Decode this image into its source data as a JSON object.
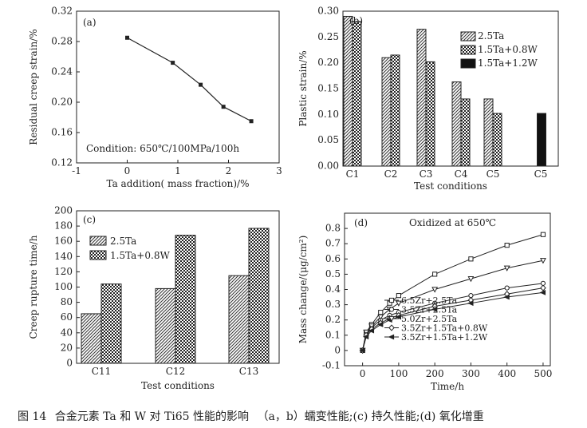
{
  "caption": {
    "figure_no": "图 14",
    "title": "合金元素 Ta 和 W 对 Ti65 性能的影响",
    "subtitle": "（a，b）蠕变性能;(c) 持久性能;(d) 氧化增重"
  },
  "chart_data": [
    {
      "id": "a",
      "type": "line",
      "panel_label": "(a)",
      "xlabel": "Ta addition( mass fraction)/%",
      "ylabel": "Residual creep strain/%",
      "xlim": [
        -1,
        3
      ],
      "ylim": [
        0.12,
        0.32
      ],
      "xticks": [
        -1,
        0,
        1,
        2,
        3
      ],
      "yticks": [
        "0.12",
        "0.16",
        "0.20",
        "0.24",
        "0.28",
        "0.32"
      ],
      "annotation": "Condition: 650℃/100MPa/100h",
      "x": [
        0,
        0.9,
        1.45,
        1.9,
        2.45
      ],
      "y": [
        0.285,
        0.252,
        0.223,
        0.194,
        0.175
      ]
    },
    {
      "id": "b",
      "type": "bar",
      "panel_label": "(b)",
      "xlabel": "Test conditions",
      "ylabel": "Plastic strain/%",
      "ylim": [
        0,
        0.3
      ],
      "yticks": [
        "0.00",
        "0.05",
        "0.10",
        "0.15",
        "0.20",
        "0.25",
        "0.30"
      ],
      "categories": [
        "C1",
        "C2",
        "C3",
        "C4",
        "C5",
        "C5"
      ],
      "series": [
        {
          "name": "2.5Ta",
          "values": [
            0.29,
            0.21,
            0.265,
            0.163,
            0.13,
            null
          ]
        },
        {
          "name": "1.5Ta+0.8W",
          "values": [
            0.28,
            0.215,
            0.202,
            0.13,
            0.102,
            null
          ]
        },
        {
          "name": "1.5Ta+1.2W",
          "values": [
            null,
            null,
            null,
            null,
            null,
            0.102
          ]
        }
      ]
    },
    {
      "id": "c",
      "type": "bar",
      "panel_label": "(c)",
      "xlabel": "Test conditions",
      "ylabel": "Creep rupture time/h",
      "ylim": [
        0,
        200
      ],
      "yticks": [
        "0",
        "20",
        "40",
        "60",
        "80",
        "100",
        "120",
        "140",
        "160",
        "180",
        "200"
      ],
      "categories": [
        "C11",
        "C12",
        "C13"
      ],
      "series": [
        {
          "name": "2.5Ta",
          "values": [
            65,
            98,
            115
          ]
        },
        {
          "name": "1.5Ta+0.8W",
          "values": [
            104,
            168,
            177
          ]
        }
      ]
    },
    {
      "id": "d",
      "type": "line",
      "panel_label": "(d)",
      "xlabel": "Time/h",
      "ylabel": "Mass change/(μg/cm²)",
      "xlim": [
        -50,
        520
      ],
      "ylim": [
        -0.1,
        0.9
      ],
      "xticks": [
        "0",
        "100",
        "200",
        "300",
        "400",
        "500"
      ],
      "yticks": [
        "-0.1",
        "0",
        "0.1",
        "0.2",
        "0.3",
        "0.4",
        "0.5",
        "0.6",
        "0.7",
        "0.8"
      ],
      "annotation": "Oxidized at 650℃",
      "x": [
        0,
        10,
        25,
        50,
        75,
        100,
        200,
        300,
        400,
        500
      ],
      "series": [
        {
          "name": "6.5Zr+2.5Ta",
          "marker": "square",
          "values": [
            0,
            0.12,
            0.17,
            0.25,
            0.31,
            0.36,
            0.5,
            0.6,
            0.69,
            0.76
          ]
        },
        {
          "name": "3.5Zr+2.5Ta",
          "marker": "circle",
          "values": [
            0,
            0.11,
            0.15,
            0.2,
            0.23,
            0.25,
            0.31,
            0.36,
            0.41,
            0.44
          ]
        },
        {
          "name": "5.0Zr+2.5Ta",
          "marker": "tri-down",
          "values": [
            0,
            0.12,
            0.16,
            0.22,
            0.27,
            0.31,
            0.4,
            0.47,
            0.54,
            0.59
          ]
        },
        {
          "name": "3.5Zr+1.5Ta+0.8W",
          "marker": "diamond",
          "values": [
            0,
            0.1,
            0.14,
            0.18,
            0.21,
            0.23,
            0.29,
            0.33,
            0.37,
            0.41
          ]
        },
        {
          "name": "3.5Zr+1.5Ta+1.2W",
          "marker": "tri-left",
          "values": [
            0,
            0.09,
            0.13,
            0.17,
            0.2,
            0.22,
            0.27,
            0.31,
            0.35,
            0.38
          ]
        }
      ]
    }
  ]
}
